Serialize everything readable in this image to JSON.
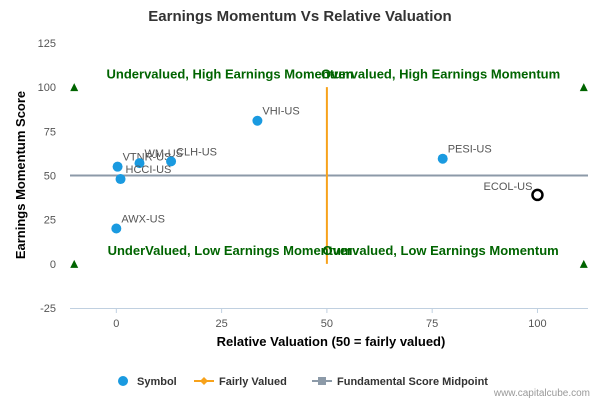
{
  "chart_data": {
    "type": "scatter",
    "title": "Earnings Momentum Vs Relative Valuation",
    "xlabel": "Relative Valuation (50 = fairly valued)",
    "ylabel": "Earnings Momentum Score",
    "xlim": [
      -11,
      112
    ],
    "ylim": [
      -25,
      125
    ],
    "x_ticks": [
      0,
      25,
      50,
      75,
      100
    ],
    "y_ticks": [
      -25,
      0,
      25,
      50,
      75,
      100,
      125
    ],
    "points": [
      {
        "label": "VTNR-US",
        "x": 0.3,
        "y": 55
      },
      {
        "label": "WM-US",
        "x": 5.5,
        "y": 57
      },
      {
        "label": "CLH-US",
        "x": 13,
        "y": 58
      },
      {
        "label": "HCCI-US",
        "x": 1,
        "y": 48
      },
      {
        "label": "AWX-US",
        "x": 0,
        "y": 20
      },
      {
        "label": "VHI-US",
        "x": 33.5,
        "y": 81
      },
      {
        "label": "PESI-US",
        "x": 77.5,
        "y": 59.5
      }
    ],
    "highlight": {
      "label": "ECOL-US",
      "x": 100,
      "y": 39
    },
    "fairly_valued_x": 50,
    "midpoint_y": 50,
    "markers": [
      {
        "x": -10,
        "y": 100
      },
      {
        "x": 111,
        "y": 100
      },
      {
        "x": -10,
        "y": 0
      },
      {
        "x": 111,
        "y": 0
      }
    ],
    "quadrants": [
      {
        "text": "Undervalued, High Earnings Momentum",
        "x": 27,
        "y": 105
      },
      {
        "text": "Overvalued, High Earnings Momentum",
        "x": 77,
        "y": 105
      },
      {
        "text": "UnderValued, Low Earnings Momentum",
        "x": 27,
        "y": 5
      },
      {
        "text": "Overvalued, Low Earnings Momentum",
        "x": 77,
        "y": 5
      }
    ],
    "legend": [
      "Symbol",
      "Fairly Valued",
      "Fundamental Score Midpoint"
    ],
    "legend_position": "bottom",
    "grid": false
  },
  "colors": {
    "point": "#1a9ae0",
    "fairly_valued": "#f7a21b",
    "midpoint": "#8c9aa8",
    "quadrant_text": "#006400",
    "axis": "#c0d0e0"
  },
  "credit": "www.capitalcube.com"
}
